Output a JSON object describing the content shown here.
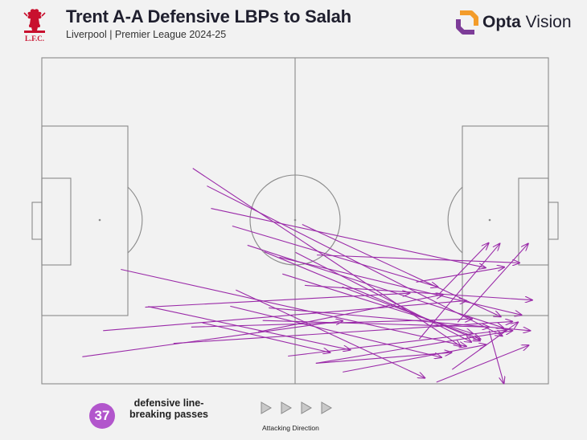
{
  "header": {
    "title": "Trent A-A Defensive LBPs to Salah",
    "subtitle": "Liverpool | Premier League 2024-25",
    "crest_text": "L.F.C.",
    "brand_word_bold": "Opta",
    "brand_word": " Vision"
  },
  "colors": {
    "background": "#f2f2f2",
    "pitch_line": "#8a8a8a",
    "pass": "#9a2aa8",
    "badge": "#b256cc",
    "crest_red": "#c8102e",
    "brand_orange": "#f39c2b",
    "brand_purple": "#7d3c98"
  },
  "footer": {
    "count": "37",
    "label": "defensive line-breaking passes",
    "direction_label": "Attacking Direction"
  },
  "chart_data": {
    "type": "pass_map",
    "x_range": [
      0,
      100
    ],
    "y_range": [
      0,
      100
    ],
    "passes": [
      {
        "x1": 29.8,
        "y1": 33.9,
        "x2": 82.7,
        "y2": 88.5
      },
      {
        "x1": 32.6,
        "y1": 39.3,
        "x2": 90.9,
        "y2": 85.3
      },
      {
        "x1": 33.4,
        "y1": 46.2,
        "x2": 87.6,
        "y2": 64.4
      },
      {
        "x1": 37.6,
        "y1": 51.6,
        "x2": 78.2,
        "y2": 70.3
      },
      {
        "x1": 51.4,
        "y1": 51.1,
        "x2": 90.6,
        "y2": 79.4
      },
      {
        "x1": 43.9,
        "y1": 59.5,
        "x2": 86.5,
        "y2": 86.8
      },
      {
        "x1": 46.9,
        "y1": 61.2,
        "x2": 94.7,
        "y2": 78.9
      },
      {
        "x1": 50.1,
        "y1": 59.7,
        "x2": 84.8,
        "y2": 87.2
      },
      {
        "x1": 54.3,
        "y1": 60.5,
        "x2": 94.3,
        "y2": 62.9
      },
      {
        "x1": 40.6,
        "y1": 57.5,
        "x2": 91.1,
        "y2": 82.8
      },
      {
        "x1": 47.5,
        "y1": 66.3,
        "x2": 85.1,
        "y2": 84.6
      },
      {
        "x1": 51.9,
        "y1": 69.8,
        "x2": 96.8,
        "y2": 74.3
      },
      {
        "x1": 38.3,
        "y1": 71.2,
        "x2": 75.6,
        "y2": 98.2
      },
      {
        "x1": 15.6,
        "y1": 64.9,
        "x2": 83.8,
        "y2": 88.5
      },
      {
        "x1": 20.4,
        "y1": 76.5,
        "x2": 72.6,
        "y2": 72.2
      },
      {
        "x1": 12.1,
        "y1": 83.7,
        "x2": 83.8,
        "y2": 74.5
      },
      {
        "x1": 8.0,
        "y1": 91.7,
        "x2": 59.4,
        "y2": 80.7
      },
      {
        "x1": 44.8,
        "y1": 76.7,
        "x2": 96.4,
        "y2": 83.7
      },
      {
        "x1": 42.7,
        "y1": 84.1,
        "x2": 79.2,
        "y2": 72.6
      },
      {
        "x1": 43.6,
        "y1": 80.6,
        "x2": 88.3,
        "y2": 82.6
      },
      {
        "x1": 29.5,
        "y1": 82.6,
        "x2": 84.9,
        "y2": 80.1
      },
      {
        "x1": 26.0,
        "y1": 87.6,
        "x2": 92.9,
        "y2": 80.9
      },
      {
        "x1": 21.0,
        "y1": 76.3,
        "x2": 60.9,
        "y2": 89.6
      },
      {
        "x1": 37.2,
        "y1": 76.2,
        "x2": 78.9,
        "y2": 91.9
      },
      {
        "x1": 31.7,
        "y1": 81.3,
        "x2": 56.9,
        "y2": 90.4
      },
      {
        "x1": 48.6,
        "y1": 91.5,
        "x2": 91.6,
        "y2": 83.5
      },
      {
        "x1": 54.1,
        "y1": 93.7,
        "x2": 92.9,
        "y2": 83.7
      },
      {
        "x1": 59.4,
        "y1": 96.4,
        "x2": 87.7,
        "y2": 88.0
      },
      {
        "x1": 54.1,
        "y1": 93.7,
        "x2": 80.9,
        "y2": 90.4
      },
      {
        "x1": 59.3,
        "y1": 70.3,
        "x2": 86.6,
        "y2": 86.3
      },
      {
        "x1": 74.5,
        "y1": 86.3,
        "x2": 90.4,
        "y2": 57.0
      },
      {
        "x1": 78.4,
        "y1": 72.5,
        "x2": 88.2,
        "y2": 56.8
      },
      {
        "x1": 82.1,
        "y1": 81.1,
        "x2": 96.0,
        "y2": 57.0
      },
      {
        "x1": 73.9,
        "y1": 68.8,
        "x2": 91.3,
        "y2": 64.2
      },
      {
        "x1": 77.9,
        "y1": 99.5,
        "x2": 96.1,
        "y2": 88.2
      },
      {
        "x1": 81.0,
        "y1": 95.6,
        "x2": 94.0,
        "y2": 81.1
      },
      {
        "x1": 88.3,
        "y1": 83.7,
        "x2": 91.2,
        "y2": 99.9
      }
    ]
  }
}
